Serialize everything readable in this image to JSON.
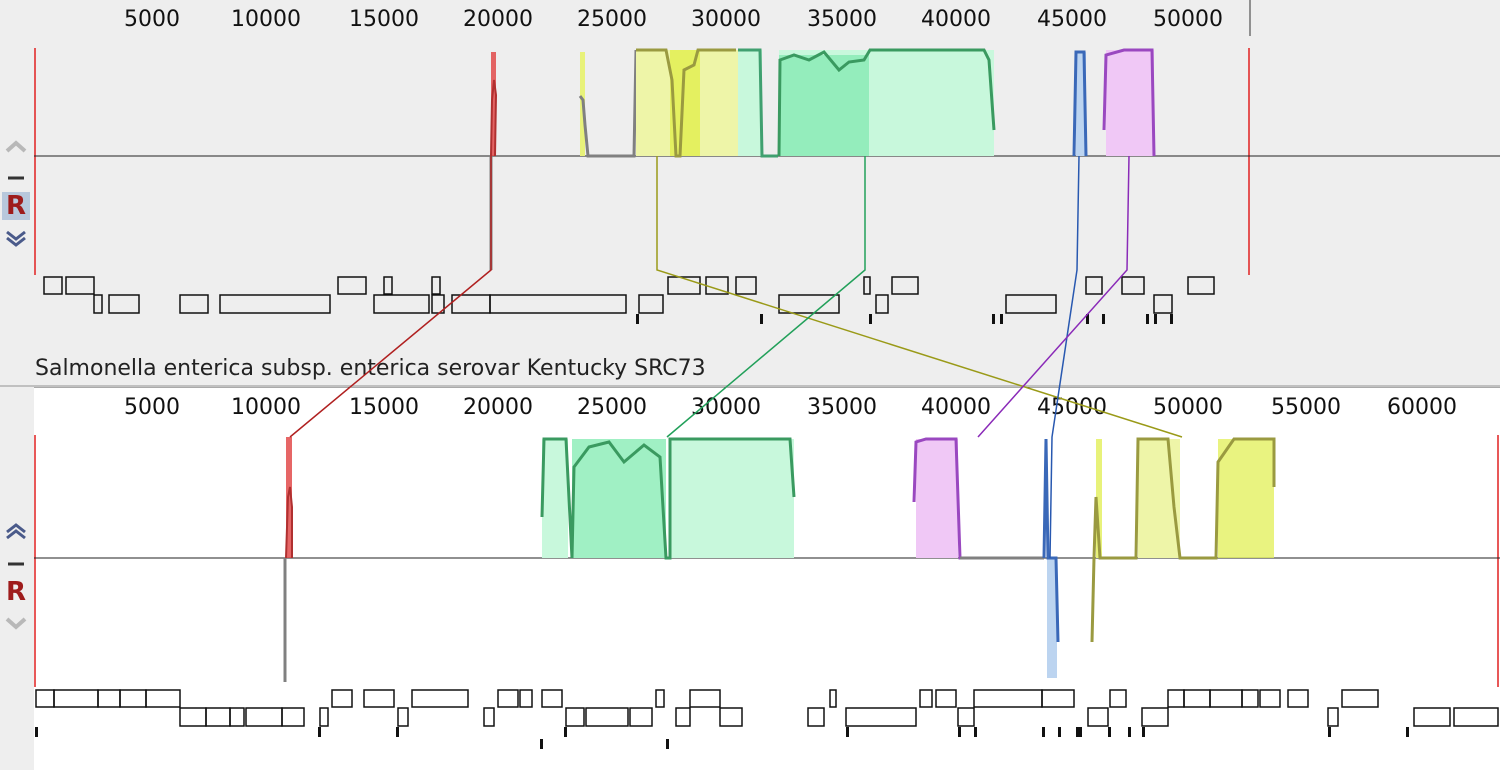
{
  "genome1": {
    "ruler_ticks": [
      "5000",
      "10000",
      "15000",
      "20000",
      "25000",
      "30000",
      "35000",
      "40000",
      "45000",
      "50000"
    ],
    "scroll_up_icon": "chevron-up-icon",
    "minus_icon": "minus-icon",
    "reverse_label": "R",
    "scroll_down_icon": "double-chevron-down-icon"
  },
  "genome2": {
    "title": "Salmonella enterica subsp. enterica serovar Kentucky SRC73",
    "ruler_ticks": [
      "5000",
      "10000",
      "15000",
      "20000",
      "25000",
      "30000",
      "35000",
      "40000",
      "45000",
      "50000",
      "55000",
      "60000"
    ],
    "scroll_up_icon": "double-chevron-up-icon",
    "minus_icon": "minus-icon",
    "reverse_label": "R",
    "scroll_down_icon": "chevron-down-icon"
  },
  "colors": {
    "red_block": "#e04040",
    "yellow_block": "#e8f27a",
    "green_block": "#5ee29a",
    "blue_block": "#5a8fd8",
    "purple_block": "#c77de0",
    "connector_red": "#b02020",
    "connector_olive": "#9a9a18",
    "connector_green": "#22a05a",
    "connector_blue": "#2858b0",
    "connector_purple": "#8a2ab8"
  }
}
